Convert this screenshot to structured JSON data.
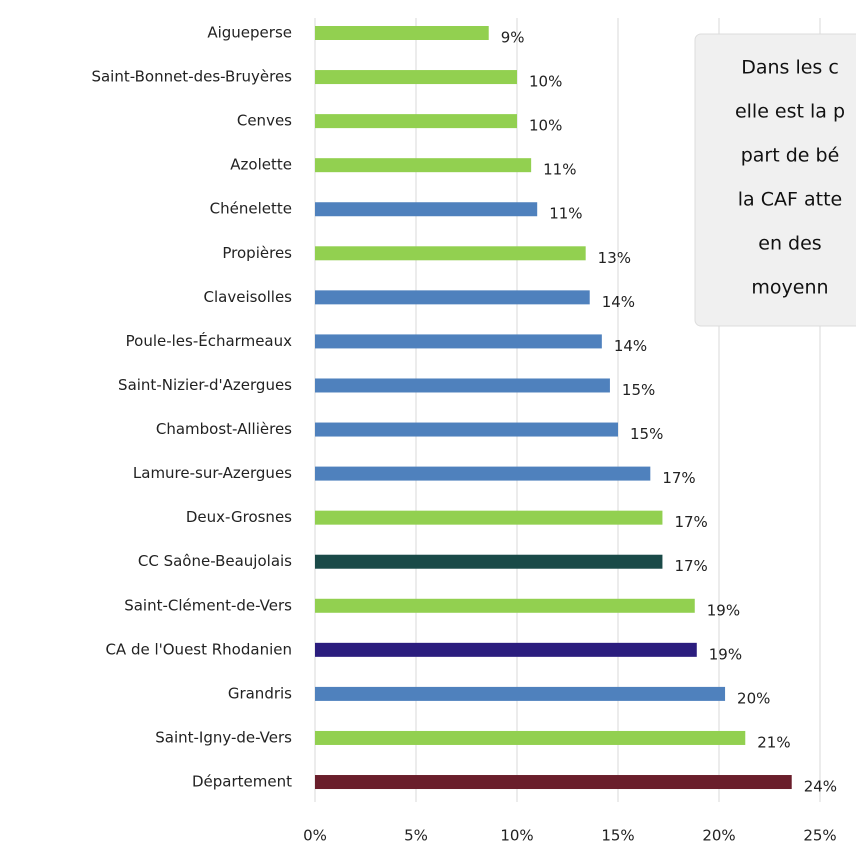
{
  "chart_data": {
    "type": "barh",
    "categories": [
      "Aigueperse",
      "Saint-Bonnet-des-Bruyères",
      "Cenves",
      "Azolette",
      "Chénelette",
      "Propières",
      "Claveisolles",
      "Poule-les-Écharmeaux",
      "Saint-Nizier-d'Azergues",
      "Chambost-Allières",
      "Lamure-sur-Azergues",
      "Deux-Grosnes",
      "CC Saône-Beaujolais",
      "Saint-Clément-de-Vers",
      "CA de l'Ouest Rhodanien",
      "Grandris",
      "Saint-Igny-de-Vers",
      "Département"
    ],
    "values": [
      8.6,
      10.0,
      10.0,
      10.7,
      11.0,
      13.4,
      13.6,
      14.2,
      14.6,
      15.0,
      16.6,
      17.2,
      17.2,
      18.8,
      18.9,
      20.3,
      21.3,
      23.6
    ],
    "value_labels": [
      "9%",
      "10%",
      "10%",
      "11%",
      "11%",
      "13%",
      "14%",
      "14%",
      "15%",
      "15%",
      "17%",
      "17%",
      "17%",
      "19%",
      "19%",
      "20%",
      "21%",
      "24%"
    ],
    "colors": [
      "#92d050",
      "#92d050",
      "#92d050",
      "#92d050",
      "#4f81bd",
      "#92d050",
      "#4f81bd",
      "#4f81bd",
      "#4f81bd",
      "#4f81bd",
      "#4f81bd",
      "#92d050",
      "#1a4a48",
      "#92d050",
      "#2b1d7e",
      "#4f81bd",
      "#92d050",
      "#6a1e2b"
    ],
    "xlim": [
      0,
      25
    ],
    "xticks": [
      {
        "value": 0,
        "label": "0%"
      },
      {
        "value": 5,
        "label": "5%"
      },
      {
        "value": 10,
        "label": "10%"
      },
      {
        "value": 15,
        "label": "15%"
      },
      {
        "value": 20,
        "label": "20%"
      },
      {
        "value": 25,
        "label": "25%"
      }
    ],
    "grid": true,
    "annotation": [
      "Dans les c",
      "elle est la p",
      "part de bé",
      "la CAF atte",
      "en des",
      "moyenn"
    ]
  }
}
